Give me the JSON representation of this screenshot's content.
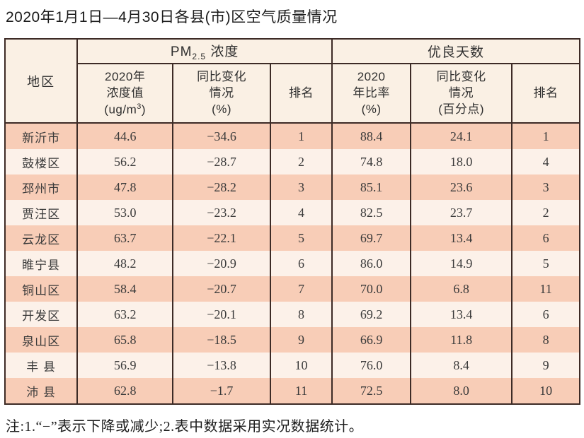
{
  "title": "2020年1月1日—4月30日各县(市)区空气质量情况",
  "footnote": "注:1.“−”表示下降或减少;2.表中数据采用实况数据统计。",
  "colors": {
    "border": "#3d2b26",
    "header_bg": "#faf0e4",
    "row_salmon": "#f8cdb7",
    "row_light": "#fcf1e9"
  },
  "table": {
    "header": {
      "region": "地区",
      "pm_group": {
        "prefix": "PM",
        "sub": "2.5",
        "suffix": " 浓度"
      },
      "days_group": "优良天数",
      "pm_value": {
        "line1": "2020年",
        "line2": "浓度值",
        "unit_prefix": "(ug/m",
        "unit_sup": "3",
        "unit_suffix": ")"
      },
      "pm_change": {
        "line1": "同比变化",
        "line2": "情况",
        "line3": "(%)"
      },
      "pm_rank": "排名",
      "days_ratio": {
        "line1": "2020",
        "line2": "年比率",
        "line3": "(%)"
      },
      "days_change": {
        "line1": "同比变化",
        "line2": "情况",
        "line3": "(百分点)"
      },
      "days_rank": "排名"
    },
    "rows": [
      {
        "region": "新沂市",
        "pm_value": "44.6",
        "pm_change": "−34.6",
        "pm_rank": "1",
        "days_ratio": "88.4",
        "days_change": "24.1",
        "days_rank": "1"
      },
      {
        "region": "鼓楼区",
        "pm_value": "56.2",
        "pm_change": "−28.7",
        "pm_rank": "2",
        "days_ratio": "74.8",
        "days_change": "18.0",
        "days_rank": "4"
      },
      {
        "region": "邳州市",
        "pm_value": "47.8",
        "pm_change": "−28.2",
        "pm_rank": "3",
        "days_ratio": "85.1",
        "days_change": "23.6",
        "days_rank": "3"
      },
      {
        "region": "贾汪区",
        "pm_value": "53.0",
        "pm_change": "−23.2",
        "pm_rank": "4",
        "days_ratio": "82.5",
        "days_change": "23.7",
        "days_rank": "2"
      },
      {
        "region": "云龙区",
        "pm_value": "63.7",
        "pm_change": "−22.1",
        "pm_rank": "5",
        "days_ratio": "69.7",
        "days_change": "13.4",
        "days_rank": "6"
      },
      {
        "region": "睢宁县",
        "pm_value": "48.2",
        "pm_change": "−20.9",
        "pm_rank": "6",
        "days_ratio": "86.0",
        "days_change": "14.9",
        "days_rank": "5"
      },
      {
        "region": "铜山区",
        "pm_value": "58.4",
        "pm_change": "−20.7",
        "pm_rank": "7",
        "days_ratio": "70.0",
        "days_change": "6.8",
        "days_rank": "11"
      },
      {
        "region": "开发区",
        "pm_value": "63.2",
        "pm_change": "−20.1",
        "pm_rank": "8",
        "days_ratio": "69.2",
        "days_change": "13.4",
        "days_rank": "6"
      },
      {
        "region": "泉山区",
        "pm_value": "65.8",
        "pm_change": "−18.5",
        "pm_rank": "9",
        "days_ratio": "66.9",
        "days_change": "11.8",
        "days_rank": "8"
      },
      {
        "region": "丰 县",
        "pm_value": "56.9",
        "pm_change": "−13.8",
        "pm_rank": "10",
        "days_ratio": "76.0",
        "days_change": "8.4",
        "days_rank": "9"
      },
      {
        "region": "沛 县",
        "pm_value": "62.8",
        "pm_change": "−1.7",
        "pm_rank": "11",
        "days_ratio": "72.5",
        "days_change": "8.0",
        "days_rank": "10"
      }
    ]
  }
}
